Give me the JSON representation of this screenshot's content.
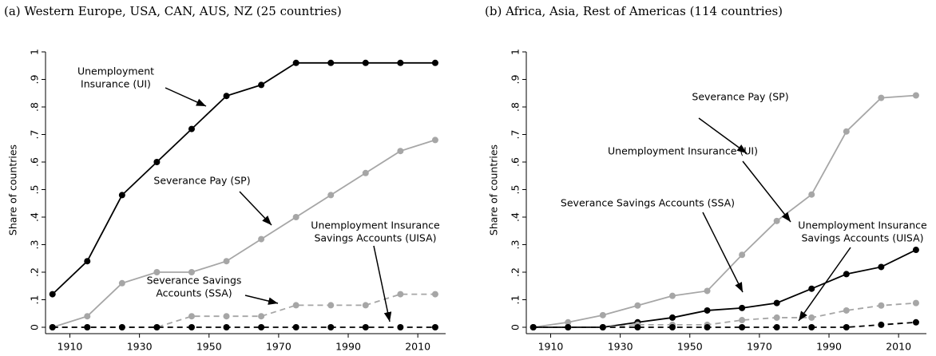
{
  "chart_data": [
    {
      "type": "line",
      "title": "(a) Western Europe, USA, CAN, AUS, NZ (25 countries)",
      "ylabel": "Share of countries",
      "x": [
        1905,
        1915,
        1925,
        1935,
        1945,
        1955,
        1965,
        1975,
        1985,
        1995,
        2005,
        2015
      ],
      "xlim": [
        1903,
        2018
      ],
      "xticks": [
        1910,
        1930,
        1950,
        1970,
        1990,
        2010
      ],
      "ylim": [
        0,
        1
      ],
      "yticks": [
        0,
        {
          "value": 0.1,
          "label": ".1"
        },
        {
          "value": 0.2,
          "label": ".2"
        },
        {
          "value": 0.3,
          "label": ".3"
        },
        {
          "value": 0.4,
          "label": ".4"
        },
        {
          "value": 0.5,
          "label": ".5"
        },
        {
          "value": 0.6,
          "label": ".6"
        },
        {
          "value": 0.7,
          "label": ".7"
        },
        {
          "value": 0.8,
          "label": ".8"
        },
        {
          "value": 0.9,
          "label": ".9"
        },
        1
      ],
      "series": [
        {
          "color": "#000000",
          "dashed": false,
          "values": [
            0.12,
            0.24,
            0.48,
            0.6,
            0.72,
            0.84,
            0.88,
            0.96,
            0.96,
            0.96,
            0.96,
            0.96
          ]
        },
        {
          "color": "#a6a6a6",
          "dashed": false,
          "values": [
            0,
            0.04,
            0.16,
            0.2,
            0.2,
            0.24,
            0.32,
            0.4,
            0.48,
            0.56,
            0.64,
            0.68
          ]
        },
        {
          "color": "#a6a6a6",
          "dashed": true,
          "values": [
            0,
            0,
            0,
            0,
            0.04,
            0.04,
            0.04,
            0.08,
            0.08,
            0.08,
            0.12,
            0.12
          ]
        },
        {
          "color": "#000000",
          "dashed": true,
          "values": [
            0,
            0,
            0,
            0,
            0,
            0,
            0,
            0,
            0,
            0,
            0,
            0
          ]
        }
      ],
      "annotations": [
        {
          "text": [
            "Unemployment",
            "Insurance (UI)"
          ]
        },
        {
          "text": [
            "Severance Pay (SP)"
          ]
        },
        {
          "text": [
            "Unemployment Insurance",
            "Savings Accounts (UISA)"
          ]
        },
        {
          "text": [
            "Severance Savings",
            "Accounts (SSA)"
          ]
        }
      ]
    },
    {
      "type": "line",
      "title": "(b) Africa, Asia, Rest of Americas (114 countries)",
      "ylabel": "Share of countries",
      "x": [
        1905,
        1915,
        1925,
        1935,
        1945,
        1955,
        1965,
        1975,
        1985,
        1995,
        2005,
        2015
      ],
      "xlim": [
        1903,
        2018
      ],
      "xticks": [
        1910,
        1930,
        1950,
        1970,
        1990,
        2010
      ],
      "ylim": [
        0,
        1
      ],
      "yticks": [
        0,
        {
          "value": 0.1,
          "label": ".1"
        },
        {
          "value": 0.2,
          "label": ".2"
        },
        {
          "value": 0.3,
          "label": ".3"
        },
        {
          "value": 0.4,
          "label": ".4"
        },
        {
          "value": 0.5,
          "label": ".5"
        },
        {
          "value": 0.6,
          "label": ".6"
        },
        {
          "value": 0.7,
          "label": ".7"
        },
        {
          "value": 0.8,
          "label": ".8"
        },
        {
          "value": 0.9,
          "label": ".9"
        },
        1
      ],
      "series": [
        {
          "color": "#a6a6a6",
          "dashed": false,
          "values": [
            0,
            0.018,
            0.044,
            0.079,
            0.114,
            0.132,
            0.263,
            0.386,
            0.482,
            0.711,
            0.833,
            0.842
          ]
        },
        {
          "color": "#000000",
          "dashed": false,
          "values": [
            0,
            0,
            0,
            0.018,
            0.035,
            0.061,
            0.07,
            0.088,
            0.14,
            0.193,
            0.219,
            0.281
          ]
        },
        {
          "color": "#a6a6a6",
          "dashed": true,
          "values": [
            0,
            0,
            0,
            0.009,
            0.009,
            0.009,
            0.026,
            0.035,
            0.035,
            0.061,
            0.079,
            0.088
          ]
        },
        {
          "color": "#000000",
          "dashed": true,
          "values": [
            0,
            0,
            0,
            0,
            0,
            0,
            0,
            0,
            0,
            0,
            0.009,
            0.018
          ]
        }
      ],
      "annotations": [
        {
          "text": [
            "Severance Pay (SP)"
          ]
        },
        {
          "text": [
            "Unemployment Insurance (UI)"
          ]
        },
        {
          "text": [
            "Severance Savings Accounts (SSA)"
          ]
        },
        {
          "text": [
            "Unemployment Insurance",
            "Savings Accounts (UISA)"
          ]
        }
      ]
    }
  ]
}
